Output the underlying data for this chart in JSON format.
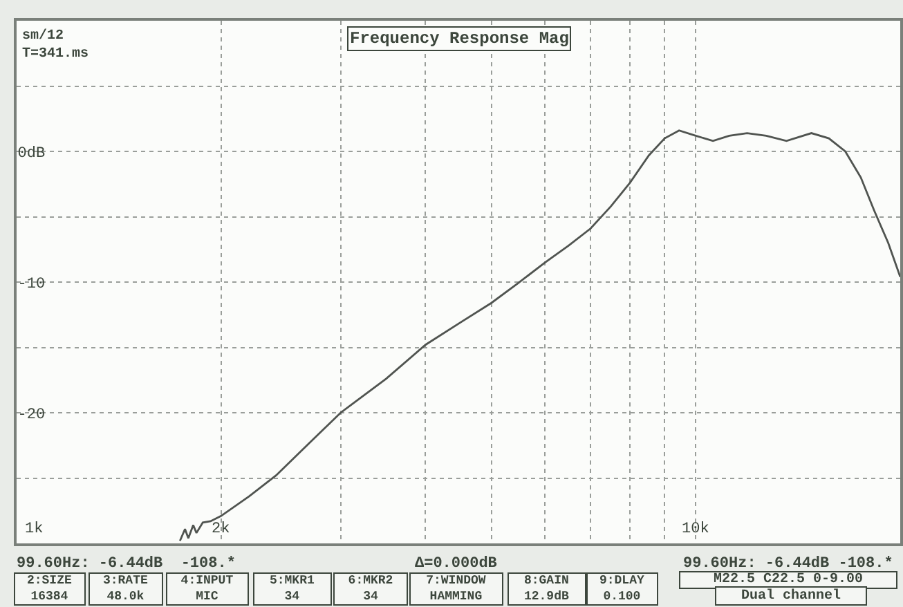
{
  "chart_data": {
    "type": "line",
    "title": "Frequency Response Mag",
    "x": [
      1740,
      1770,
      1790,
      1820,
      1840,
      1880,
      1930,
      2000,
      2200,
      2410,
      2700,
      3000,
      3500,
      4000,
      4500,
      5000,
      5470,
      6000,
      6500,
      7000,
      7500,
      8000,
      8530,
      9000,
      9450,
      10000,
      10600,
      11200,
      11900,
      12700,
      13600,
      14800,
      15700,
      16600,
      17500,
      18300,
      19200,
      20000
    ],
    "series": [
      {
        "color": "#505450",
        "values": [
          -29.8,
          -28.9,
          -29.6,
          -28.6,
          -29.2,
          -28.4,
          -28.3,
          -27.9,
          -26.4,
          -24.8,
          -22.3,
          -20.0,
          -17.4,
          -14.8,
          -13.1,
          -11.6,
          -10.1,
          -8.5,
          -7.2,
          -5.9,
          -4.2,
          -2.4,
          -0.3,
          1.0,
          1.6,
          1.2,
          0.8,
          1.2,
          1.4,
          1.2,
          0.8,
          1.4,
          1.0,
          0.0,
          -2.0,
          -4.5,
          -7.0,
          -9.6
        ]
      }
    ],
    "xlim": [
      1000,
      20000
    ],
    "ylim": [
      -30,
      10
    ],
    "log": "x",
    "xticks": [
      {
        "value": 1000,
        "label": "1k"
      },
      {
        "value": 2000,
        "label": "2k"
      },
      {
        "value": 3000,
        "label": null
      },
      {
        "value": 4000,
        "label": null
      },
      {
        "value": 5000,
        "label": null
      },
      {
        "value": 6000,
        "label": null
      },
      {
        "value": 7000,
        "label": null
      },
      {
        "value": 8000,
        "label": null
      },
      {
        "value": 9000,
        "label": null
      },
      {
        "value": 10000,
        "label": "10k"
      }
    ],
    "yticks": [
      {
        "value": 5,
        "label": null
      },
      {
        "value": 0,
        "label": "0dB"
      },
      {
        "value": -5,
        "label": null
      },
      {
        "value": -10,
        "label": "-10"
      },
      {
        "value": -15,
        "label": null
      },
      {
        "value": -20,
        "label": "-20"
      },
      {
        "value": -25,
        "label": null
      }
    ],
    "grid": true,
    "marker": "none",
    "line_style": "solid",
    "annotations": [
      "sm/12\nT=341.ms",
      "99.60Hz: -6.44dB  -108.*",
      "Δ=0.000dB",
      "99.60Hz: -6.44dB -108.*",
      "2:SIZE\n16384",
      "3:RATE\n48.0k",
      "4:INPUT\nMIC",
      "5:MKR1\n34",
      "6:MKR2\n34",
      "7:WINDOW\nHAMMING",
      "8:GAIN\n12.9dB",
      "9:DLAY\n0.100",
      "M22.5 C22.5 0-9.00",
      "Dual channel"
    ]
  }
}
